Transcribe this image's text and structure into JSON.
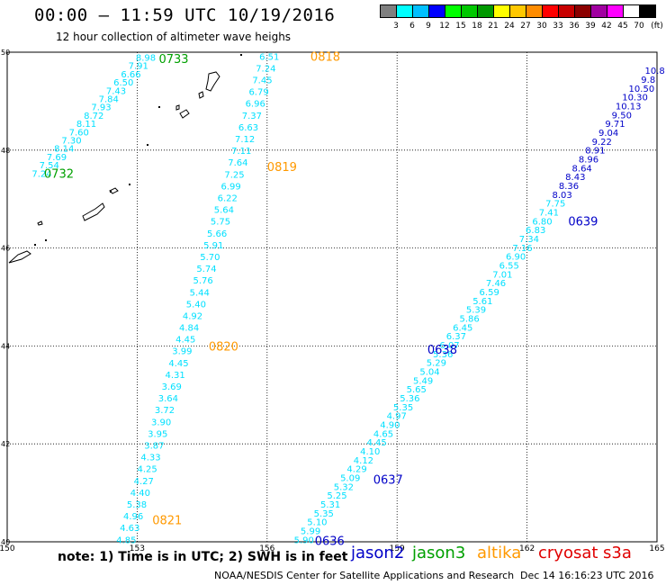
{
  "title": "00:00 – 11:59 UTC 10/19/2016",
  "subtitle": "12 hour collection of altimeter wave heighs",
  "legend": {
    "unit": "(ft)",
    "colors": [
      "#7f7f7f",
      "#00ffff",
      "#00bfff",
      "#0000ff",
      "#00ff00",
      "#00c800",
      "#009900",
      "#ffff00",
      "#ffc800",
      "#ff8c00",
      "#ff0000",
      "#c80000",
      "#8b0000",
      "#a000a0",
      "#ff00ff",
      "#ffffff",
      "#000000"
    ],
    "ticks": [
      "3",
      "6",
      "9",
      "12",
      "15",
      "18",
      "21",
      "24",
      "27",
      "30",
      "33",
      "36",
      "39",
      "42",
      "45",
      "70"
    ]
  },
  "map": {
    "lon_ticks": [
      "150",
      "153",
      "156",
      "159",
      "162",
      "165"
    ],
    "lat_ticks": [
      "50",
      "48",
      "46",
      "44",
      "42",
      "40"
    ]
  },
  "colors": {
    "cyan": "#00e0ff",
    "orange": "#ff9900",
    "blue": "#0000c8",
    "green": "#00a000",
    "red": "#e00000"
  },
  "chart_data": {
    "type": "scatter",
    "xlim": [
      150,
      165
    ],
    "ylim": [
      40,
      50
    ],
    "tracks": [
      {
        "satellite": "altika",
        "color": "#00e0ff",
        "values": [
          "8.98",
          "7.91",
          "6.66",
          "6.50",
          "7.43",
          "7.84",
          "7.93",
          "8.72",
          "8.11",
          "7.60",
          "7.30",
          "8.14",
          "7.69",
          "7.54",
          "7.24"
        ],
        "start": [
          153.2,
          49.9
        ],
        "end": [
          150.8,
          47.53
        ]
      },
      {
        "satellite": "altika",
        "color": "#00e0ff",
        "values": [
          "6.51",
          "7.24",
          "7.45",
          "6.79",
          "6.96",
          "7.37",
          "6.63",
          "7.12",
          "7.11",
          "7.64",
          "7.25",
          "6.99",
          "6.22",
          "5.64",
          "5.75",
          "5.66",
          "5.91",
          "5.70",
          "5.74",
          "5.76",
          "5.44",
          "5.40",
          "4.92",
          "4.84",
          "4.45",
          "3.99",
          "4.45",
          "4.31",
          "3.69",
          "3.64",
          "3.72",
          "3.90",
          "3.95",
          "3.87",
          "4.33",
          "4.25",
          "4.27",
          "4.40",
          "5.38",
          "4.96",
          "4.63",
          "4.85"
        ],
        "start": [
          156.05,
          49.92
        ],
        "end": [
          152.75,
          40.05
        ]
      },
      {
        "satellite": "jason2",
        "color": "#00e0ff",
        "values": [
          "10.8",
          "9.8",
          "10.50",
          "10.30",
          "10.13",
          "9.50",
          "9.71",
          "9.04",
          "9.22",
          "8.91",
          "8.96",
          "8.64",
          "8.43",
          "8.36",
          "8.03",
          "7.75",
          "7.41",
          "6.80",
          "6.83",
          "7.34",
          "7.16",
          "6.90",
          "6.55",
          "7.01",
          "7.46",
          "6.59",
          "5.61",
          "5.39",
          "5.86",
          "6.45",
          "6.37",
          "6.07",
          "5.36",
          "5.29",
          "5.04",
          "5.49",
          "5.65",
          "5.36",
          "5.35",
          "4.97",
          "4.90",
          "4.65",
          "4.45",
          "4.10",
          "4.12",
          "4.29",
          "5.09",
          "5.32",
          "5.25",
          "5.31",
          "5.35",
          "5.10",
          "5.99",
          "5.90"
        ],
        "start": [
          164.95,
          49.63
        ],
        "end": [
          156.85,
          40.05
        ]
      }
    ],
    "pass_labels": [
      {
        "text": "0733",
        "color": "#00a000",
        "lon": 153.5,
        "lat": 49.87
      },
      {
        "text": "0732",
        "color": "#00a000",
        "lon": 150.85,
        "lat": 47.53
      },
      {
        "text": "0818",
        "color": "#ff9900",
        "lon": 157.0,
        "lat": 49.92
      },
      {
        "text": "0819",
        "color": "#ff9900",
        "lon": 156.0,
        "lat": 47.67
      },
      {
        "text": "0820",
        "color": "#ff9900",
        "lon": 154.65,
        "lat": 44.0
      },
      {
        "text": "0821",
        "color": "#ff9900",
        "lon": 153.35,
        "lat": 40.45
      },
      {
        "text": "0639",
        "color": "#0000c8",
        "lon": 162.95,
        "lat": 46.55
      },
      {
        "text": "0638",
        "color": "#0000c8",
        "lon": 159.7,
        "lat": 43.93
      },
      {
        "text": "0637",
        "color": "#0000c8",
        "lon": 158.45,
        "lat": 41.28
      },
      {
        "text": "0636",
        "color": "#0000c8",
        "lon": 157.1,
        "lat": 40.03
      }
    ]
  },
  "footer": {
    "note": "note:  1) Time is in UTC;  2) SWH is in feet",
    "satellites": [
      {
        "name": "jason2",
        "color": "#0000c8",
        "x": 390
      },
      {
        "name": "jason3",
        "color": "#00a000",
        "x": 458
      },
      {
        "name": "altika",
        "color": "#ff9900",
        "x": 530
      },
      {
        "name": "cryosat",
        "color": "#e00000",
        "x": 598
      },
      {
        "name": "s3a",
        "color": "#e00000",
        "x": 670
      }
    ],
    "credit": "NOAA/NESDIS Center for Satellite Applications and Research",
    "timestamp": "Dec 14 16:16:23 UTC 2016"
  }
}
